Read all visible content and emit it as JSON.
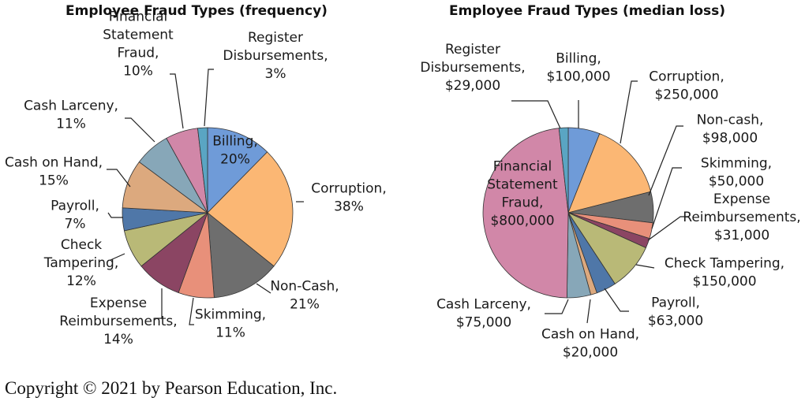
{
  "chart_data": [
    {
      "type": "pie",
      "title": "Employee Fraud Types (frequency)",
      "slices": [
        {
          "key": "billing",
          "label": [
            "Billing,",
            "20%"
          ],
          "value": 20,
          "color": "#6f9bd8"
        },
        {
          "key": "corruption",
          "label": [
            "Corruption,",
            "38%"
          ],
          "value": 38,
          "color": "#fbb774"
        },
        {
          "key": "noncash",
          "label": [
            "Non-Cash,",
            "21%"
          ],
          "value": 21,
          "color": "#6e6e6e"
        },
        {
          "key": "skimming",
          "label": [
            "Skimming,",
            "11%"
          ],
          "value": 11,
          "color": "#e8907a"
        },
        {
          "key": "expense",
          "label": [
            "Expense",
            "Reimbursements,",
            "14%"
          ],
          "value": 14,
          "color": "#8b4563"
        },
        {
          "key": "check",
          "label": [
            "Check",
            "Tampering,",
            "12%"
          ],
          "value": 12,
          "color": "#b9b977"
        },
        {
          "key": "payroll",
          "label": [
            "Payroll,",
            "7%"
          ],
          "value": 7,
          "color": "#4f77a8"
        },
        {
          "key": "cashonhand",
          "label": [
            "Cash on Hand,",
            "15%"
          ],
          "value": 15,
          "color": "#dca97e"
        },
        {
          "key": "larceny",
          "label": [
            "Cash Larceny,",
            "11%"
          ],
          "value": 11,
          "color": "#87a7b8"
        },
        {
          "key": "fsfraud",
          "label": [
            "Financial",
            "Statement",
            "Fraud,",
            "10%"
          ],
          "value": 10,
          "color": "#d187a8"
        },
        {
          "key": "register",
          "label": [
            "Register",
            "Disbursements,",
            "3%"
          ],
          "value": 3,
          "color": "#5aa5c3"
        }
      ]
    },
    {
      "type": "pie",
      "title": "Employee Fraud Types (median loss)",
      "slices": [
        {
          "key": "billing",
          "label": [
            "Billing,",
            "$100,000"
          ],
          "value": 100000,
          "color": "#6f9bd8"
        },
        {
          "key": "corruption",
          "label": [
            "Corruption,",
            "$250,000"
          ],
          "value": 250000,
          "color": "#fbb774"
        },
        {
          "key": "noncash",
          "label": [
            "Non-cash,",
            "$98,000"
          ],
          "value": 98000,
          "color": "#6e6e6e"
        },
        {
          "key": "skimming",
          "label": [
            "Skimming,",
            "$50,000"
          ],
          "value": 50000,
          "color": "#e8907a"
        },
        {
          "key": "expense",
          "label": [
            "Expense",
            "Reimbursements,",
            "$31,000"
          ],
          "value": 31000,
          "color": "#8b4563"
        },
        {
          "key": "check",
          "label": [
            "Check Tampering,",
            "$150,000"
          ],
          "value": 150000,
          "color": "#b9b977"
        },
        {
          "key": "payroll",
          "label": [
            "Payroll,",
            "$63,000"
          ],
          "value": 63000,
          "color": "#4f77a8"
        },
        {
          "key": "cashonhand",
          "label": [
            "Cash on Hand,",
            "$20,000"
          ],
          "value": 20000,
          "color": "#dca97e"
        },
        {
          "key": "larceny",
          "label": [
            "Cash Larceny,",
            "$75,000"
          ],
          "value": 75000,
          "color": "#87a7b8"
        },
        {
          "key": "fsfraud",
          "label": [
            "Financial",
            "Statement",
            "Fraud,",
            "$800,000"
          ],
          "value": 800000,
          "color": "#d187a8"
        },
        {
          "key": "register",
          "label": [
            "Register",
            "Disbursements,",
            "$29,000"
          ],
          "value": 29000,
          "color": "#5aa5c3"
        }
      ]
    }
  ],
  "footer": {
    "copyright": "Copyright © 2021 by Pearson Education, Inc."
  }
}
